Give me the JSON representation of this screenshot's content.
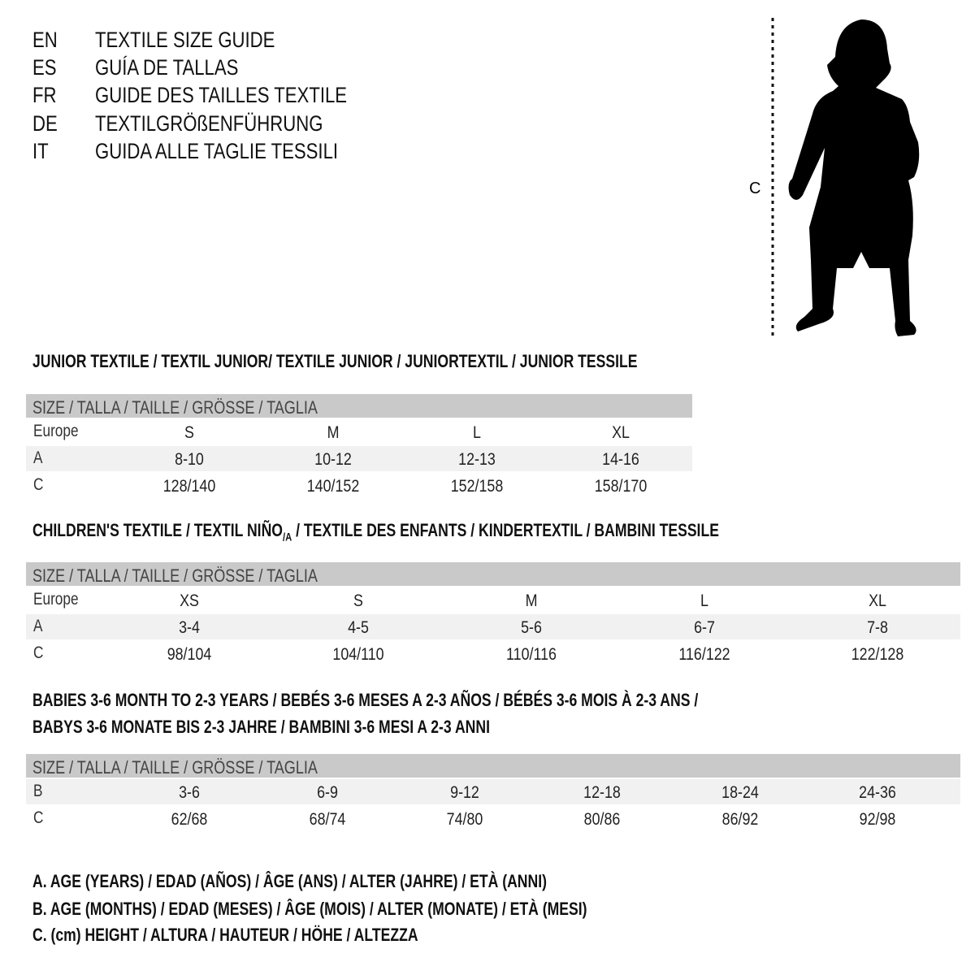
{
  "header": [
    {
      "lang": "EN",
      "title": "TEXTILE SIZE GUIDE"
    },
    {
      "lang": "ES",
      "title": "GUÍA DE TALLAS"
    },
    {
      "lang": "FR",
      "title": "GUIDE DES TAILLES TEXTILE"
    },
    {
      "lang": "DE",
      "title": "TEXTILGRÖßENFÜHRUNG"
    },
    {
      "lang": "IT",
      "title": "GUIDA ALLE TAGLIE TESSILI"
    }
  ],
  "figure": {
    "label": "C",
    "icon": "child-silhouette-icon"
  },
  "junior": {
    "title": "JUNIOR TEXTILE / TEXTIL JUNIOR/ TEXTILE JUNIOR / JUNIORTEXTIL / JUNIOR TESSILE",
    "size_header": "SIZE / TALLA / TAILLE / GRÖSSE / TAGLIA",
    "rows": [
      {
        "label": "Europe",
        "cells": [
          "S",
          "M",
          "L",
          "XL"
        ]
      },
      {
        "label": "A",
        "cells": [
          "8-10",
          "10-12",
          "12-13",
          "14-16"
        ]
      },
      {
        "label": "C",
        "cells": [
          "128/140",
          "140/152",
          "152/158",
          "158/170"
        ]
      }
    ]
  },
  "children": {
    "title_a": "CHILDREN'S TEXTILE / TEXTIL NIÑO",
    "title_sub": "/A",
    "title_b": " / TEXTILE DES ENFANTS / KINDERTEXTIL / BAMBINI TESSILE",
    "size_header": "SIZE / TALLA / TAILLE / GRÖSSE / TAGLIA",
    "rows": [
      {
        "label": "Europe",
        "cells": [
          "XS",
          "S",
          "M",
          "L",
          "XL"
        ]
      },
      {
        "label": "A",
        "cells": [
          "3-4",
          "4-5",
          "5-6",
          "6-7",
          "7-8"
        ]
      },
      {
        "label": "C",
        "cells": [
          "98/104",
          "104/110",
          "110/116",
          "116/122",
          "122/128"
        ]
      }
    ]
  },
  "babies": {
    "title_line1": "BABIES 3-6 MONTH TO 2-3 YEARS / BEBÉS 3-6 MESES A 2-3 AÑOS / BÉBÉS 3-6 MOIS À 2-3 ANS /",
    "title_line2": "BABYS 3-6 MONATE BIS 2-3 JAHRE / BAMBINI 3-6 MESI A 2-3 ANNI",
    "size_header": "SIZE / TALLA / TAILLE / GRÖSSE / TAGLIA",
    "rows": [
      {
        "label": "B",
        "cells": [
          "3-6",
          "6-9",
          "9-12",
          "12-18",
          "18-24",
          "24-36"
        ]
      },
      {
        "label": "C",
        "cells": [
          "62/68",
          "68/74",
          "74/80",
          "80/86",
          "86/92",
          "92/98"
        ]
      }
    ]
  },
  "legend": [
    "A. AGE (YEARS) / EDAD (AÑOS) / ÂGE (ANS) / ALTER (JAHRE) / ETÀ (ANNI)",
    "B. AGE (MONTHS) / EDAD (MESES) / ÂGE (MOIS) / ALTER (MONATE) / ETÀ (MESI)",
    "C. (cm) HEIGHT / ALTURA / HAUTEUR / HÖHE / ALTEZZA"
  ]
}
